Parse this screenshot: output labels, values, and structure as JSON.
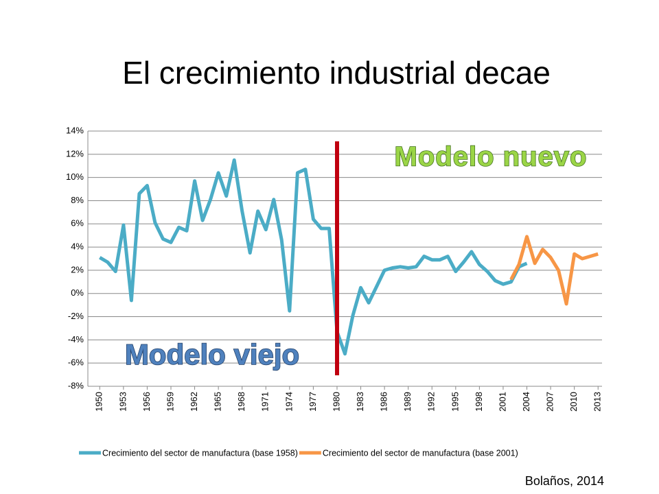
{
  "chart_data": {
    "type": "line",
    "title": "El crecimiento industrial decae",
    "x": [
      1950,
      1951,
      1952,
      1953,
      1954,
      1955,
      1956,
      1957,
      1958,
      1959,
      1960,
      1961,
      1962,
      1963,
      1964,
      1965,
      1966,
      1967,
      1968,
      1969,
      1970,
      1971,
      1972,
      1973,
      1974,
      1975,
      1976,
      1977,
      1978,
      1979,
      1980,
      1981,
      1982,
      1983,
      1984,
      1985,
      1986,
      1987,
      1988,
      1989,
      1990,
      1991,
      1992,
      1993,
      1994,
      1995,
      1996,
      1997,
      1998,
      1999,
      2000,
      2001,
      2002,
      2003,
      2004,
      2005,
      2006,
      2007,
      2008,
      2009,
      2010,
      2011,
      2012,
      2013
    ],
    "xlim": [
      1948.5,
      2013.5
    ],
    "xticks": [
      1950,
      1953,
      1956,
      1959,
      1962,
      1965,
      1968,
      1971,
      1974,
      1977,
      1980,
      1983,
      1986,
      1989,
      1992,
      1995,
      1998,
      2001,
      2004,
      2007,
      2010,
      2013
    ],
    "ylim": [
      -8,
      14
    ],
    "yticks": [
      {
        "value": -8,
        "label": "-8%"
      },
      {
        "value": -6,
        "label": "-6%"
      },
      {
        "value": -4,
        "label": "-4%"
      },
      {
        "value": -2,
        "label": "-2%"
      },
      {
        "value": 0,
        "label": "0%"
      },
      {
        "value": 2,
        "label": "2%"
      },
      {
        "value": 4,
        "label": "4%"
      },
      {
        "value": 6,
        "label": "6%"
      },
      {
        "value": 8,
        "label": "8%"
      },
      {
        "value": 10,
        "label": "10%"
      },
      {
        "value": 12,
        "label": "12%"
      },
      {
        "value": 14,
        "label": "14%"
      }
    ],
    "grid": true,
    "legend": "bottom",
    "series": [
      {
        "name": "Crecimiento del sector de manufactura (base 1958)",
        "color": "#4bacc6",
        "values": [
          3.1,
          2.7,
          1.9,
          5.9,
          -0.6,
          8.6,
          9.3,
          6.1,
          4.7,
          4.4,
          5.7,
          5.4,
          9.7,
          6.3,
          8.1,
          10.4,
          8.4,
          11.5,
          7.1,
          3.5,
          7.1,
          5.5,
          8.1,
          4.6,
          -1.5,
          10.4,
          10.7,
          6.4,
          5.6,
          5.6,
          -3.3,
          -5.2,
          -1.9,
          0.5,
          -0.8,
          0.6,
          2.0,
          2.2,
          2.3,
          2.2,
          2.3,
          3.2,
          2.9,
          2.9,
          3.2,
          1.9,
          2.7,
          3.6,
          2.5,
          1.9,
          1.1,
          0.8,
          1.0,
          2.3,
          2.6,
          null,
          null,
          null,
          null,
          null,
          null,
          null,
          null,
          null
        ]
      },
      {
        "name": "Crecimiento del sector de manufactura (base 2001)",
        "color": "#f79646",
        "values": [
          null,
          null,
          null,
          null,
          null,
          null,
          null,
          null,
          null,
          null,
          null,
          null,
          null,
          null,
          null,
          null,
          null,
          null,
          null,
          null,
          null,
          null,
          null,
          null,
          null,
          null,
          null,
          null,
          null,
          null,
          null,
          null,
          null,
          null,
          null,
          null,
          null,
          null,
          null,
          null,
          null,
          null,
          null,
          null,
          null,
          null,
          null,
          null,
          null,
          null,
          null,
          null,
          1.2,
          2.5,
          4.9,
          2.6,
          3.8,
          3.1,
          2.0,
          -0.9,
          3.4,
          3.0,
          3.2,
          3.4
        ]
      }
    ],
    "annotations": [
      "Modelo nuevo",
      "Modelo viejo"
    ],
    "source": "Bolaños, 2014"
  }
}
